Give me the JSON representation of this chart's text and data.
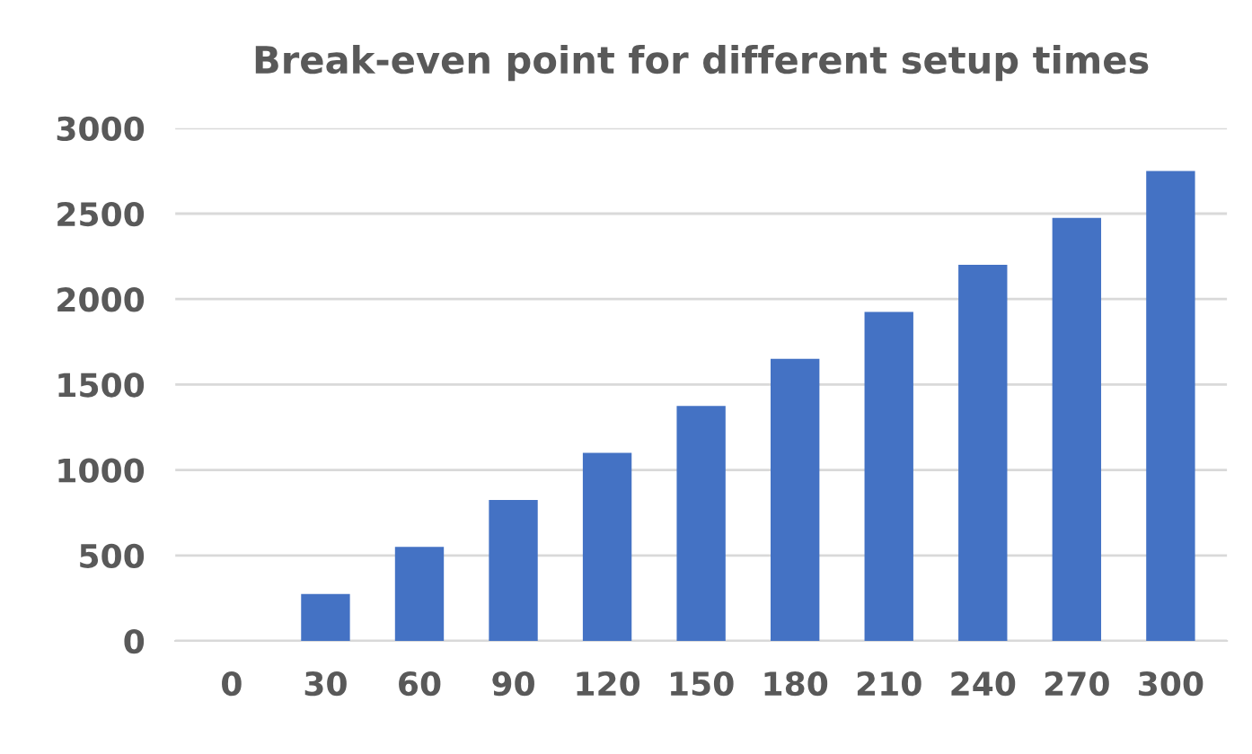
{
  "chart_data": {
    "type": "bar",
    "title": "Break-even point for different setup times",
    "categories": [
      "0",
      "30",
      "60",
      "90",
      "120",
      "150",
      "180",
      "210",
      "240",
      "270",
      "300"
    ],
    "values": [
      0,
      275,
      550,
      825,
      1100,
      1375,
      1650,
      1925,
      2200,
      2475,
      2750
    ],
    "color": "#4472c4",
    "ylim": [
      0,
      3000
    ],
    "yticks": [
      0,
      500,
      1000,
      1500,
      2000,
      2500,
      3000
    ],
    "grid": "y",
    "legend": false
  }
}
